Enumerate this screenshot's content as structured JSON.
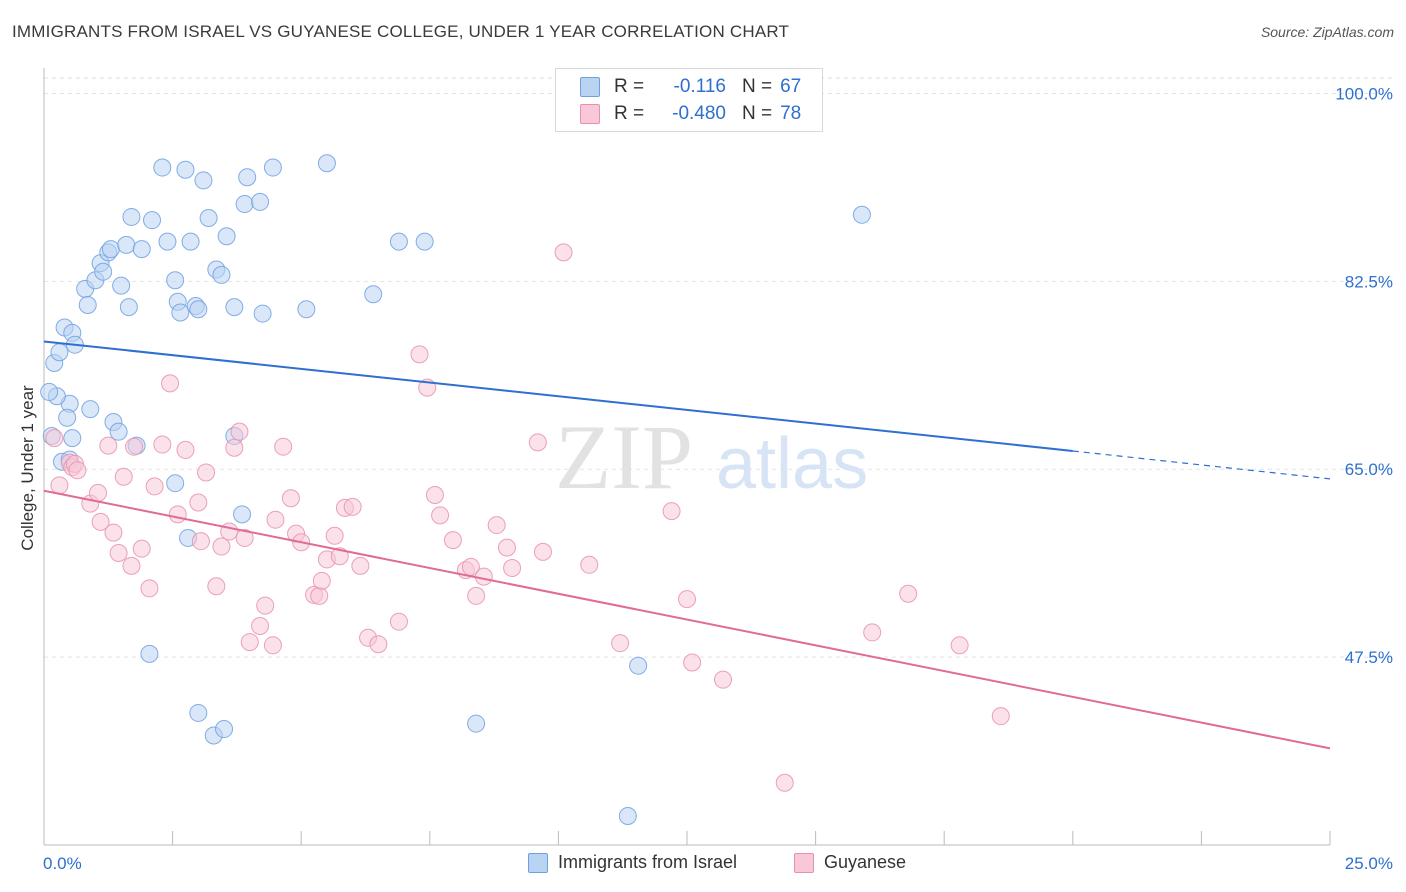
{
  "title": "IMMIGRANTS FROM ISRAEL VS GUYANESE COLLEGE, UNDER 1 YEAR CORRELATION CHART",
  "source": "Source: ZipAtlas.com",
  "watermark": {
    "zip": "ZIP",
    "atlas": "atlas"
  },
  "legend": {
    "rows": [
      {
        "key": "R =",
        "r": "-0.116",
        "nkey": "N =",
        "n": "67",
        "color": "#6fa0e0"
      },
      {
        "key": "R =",
        "r": "-0.480",
        "nkey": "N =",
        "n": "78",
        "color": "#e890ae"
      }
    ]
  },
  "bottom_legend": [
    "Immigrants from Israel",
    "Guyanese"
  ],
  "chart_data": {
    "type": "scatter",
    "title": "IMMIGRANTS FROM ISRAEL VS GUYANESE COLLEGE, UNDER 1 YEAR CORRELATION CHART",
    "xlabel": "",
    "ylabel": "College, Under 1 year",
    "xlim": [
      0,
      25
    ],
    "ylim": [
      30,
      102
    ],
    "x_tick_labels": [
      "0.0%",
      "25.0%"
    ],
    "y_ticks": [
      100,
      82.5,
      65,
      47.5
    ],
    "y_tick_labels": [
      "100.0%",
      "82.5%",
      "65.0%",
      "47.5%"
    ],
    "grid": true,
    "legend_position": "top-center",
    "series": [
      {
        "name": "Immigrants from Israel",
        "color": "#6fa0e0",
        "fill": "#b9d3f3",
        "r": -0.116,
        "n": 67,
        "trend": {
          "x0": 0,
          "y0": 76.9,
          "x1": 20.0,
          "y1": 66.7,
          "dash_to_x": 25,
          "dash_to_y": 64.1
        },
        "points": [
          [
            0.15,
            68.1
          ],
          [
            0.2,
            74.9
          ],
          [
            0.3,
            75.9
          ],
          [
            0.4,
            78.2
          ],
          [
            0.5,
            71.1
          ],
          [
            0.45,
            69.8
          ],
          [
            0.25,
            71.8
          ],
          [
            0.55,
            77.7
          ],
          [
            0.6,
            76.6
          ],
          [
            0.8,
            81.8
          ],
          [
            0.85,
            80.3
          ],
          [
            1.0,
            82.6
          ],
          [
            1.1,
            84.2
          ],
          [
            1.15,
            83.4
          ],
          [
            1.25,
            85.2
          ],
          [
            1.3,
            85.5
          ],
          [
            1.5,
            82.1
          ],
          [
            1.6,
            85.9
          ],
          [
            1.65,
            80.1
          ],
          [
            1.7,
            88.5
          ],
          [
            1.9,
            85.5
          ],
          [
            2.1,
            88.2
          ],
          [
            2.3,
            93.1
          ],
          [
            2.4,
            86.2
          ],
          [
            2.55,
            82.6
          ],
          [
            2.6,
            80.6
          ],
          [
            2.65,
            79.6
          ],
          [
            2.75,
            92.9
          ],
          [
            2.85,
            86.2
          ],
          [
            2.95,
            80.2
          ],
          [
            3.0,
            79.9
          ],
          [
            3.1,
            91.9
          ],
          [
            3.2,
            88.4
          ],
          [
            3.35,
            83.6
          ],
          [
            3.45,
            83.1
          ],
          [
            3.55,
            86.7
          ],
          [
            3.7,
            80.1
          ],
          [
            3.9,
            89.7
          ],
          [
            3.95,
            92.2
          ],
          [
            4.2,
            89.9
          ],
          [
            4.25,
            79.5
          ],
          [
            4.45,
            93.1
          ],
          [
            5.1,
            79.9
          ],
          [
            5.5,
            93.5
          ],
          [
            6.4,
            81.3
          ],
          [
            6.9,
            86.2
          ],
          [
            7.4,
            86.2
          ],
          [
            15.9,
            88.7
          ],
          [
            0.1,
            72.2
          ],
          [
            0.9,
            70.6
          ],
          [
            1.35,
            69.4
          ],
          [
            1.45,
            68.5
          ],
          [
            1.8,
            67.2
          ],
          [
            2.55,
            63.7
          ],
          [
            3.7,
            68.1
          ],
          [
            3.85,
            60.8
          ],
          [
            2.8,
            58.6
          ],
          [
            2.05,
            47.8
          ],
          [
            3.0,
            42.3
          ],
          [
            3.3,
            40.2
          ],
          [
            3.5,
            40.8
          ],
          [
            8.4,
            41.3
          ],
          [
            11.55,
            46.7
          ],
          [
            11.35,
            32.7
          ],
          [
            0.35,
            65.7
          ],
          [
            0.5,
            65.9
          ],
          [
            0.55,
            67.9
          ]
        ]
      },
      {
        "name": "Guyanese",
        "color": "#e890ae",
        "fill": "#f8c8d8",
        "r": -0.48,
        "n": 78,
        "trend": {
          "x0": 0,
          "y0": 63.0,
          "x1": 25,
          "y1": 39.0
        },
        "points": [
          [
            0.2,
            67.9
          ],
          [
            0.3,
            63.5
          ],
          [
            0.5,
            65.6
          ],
          [
            0.55,
            65.2
          ],
          [
            0.6,
            65.5
          ],
          [
            0.65,
            64.9
          ],
          [
            0.9,
            61.8
          ],
          [
            1.05,
            62.8
          ],
          [
            1.1,
            60.1
          ],
          [
            1.25,
            67.2
          ],
          [
            1.35,
            59.1
          ],
          [
            1.45,
            57.2
          ],
          [
            1.55,
            64.3
          ],
          [
            1.7,
            56.0
          ],
          [
            1.75,
            67.1
          ],
          [
            1.9,
            57.6
          ],
          [
            2.05,
            53.9
          ],
          [
            2.15,
            63.4
          ],
          [
            2.3,
            67.3
          ],
          [
            2.45,
            73.0
          ],
          [
            2.6,
            60.8
          ],
          [
            2.75,
            66.8
          ],
          [
            3.0,
            61.9
          ],
          [
            3.05,
            58.3
          ],
          [
            3.15,
            64.7
          ],
          [
            3.35,
            54.1
          ],
          [
            3.45,
            57.8
          ],
          [
            3.6,
            59.2
          ],
          [
            3.7,
            67.0
          ],
          [
            3.8,
            68.5
          ],
          [
            3.9,
            58.6
          ],
          [
            4.0,
            48.9
          ],
          [
            4.2,
            50.4
          ],
          [
            4.3,
            52.3
          ],
          [
            4.45,
            48.6
          ],
          [
            4.5,
            60.3
          ],
          [
            4.65,
            67.1
          ],
          [
            4.8,
            62.3
          ],
          [
            4.9,
            59.0
          ],
          [
            5.0,
            58.2
          ],
          [
            5.25,
            53.3
          ],
          [
            5.35,
            53.2
          ],
          [
            5.4,
            54.6
          ],
          [
            5.5,
            56.6
          ],
          [
            5.65,
            58.8
          ],
          [
            5.75,
            56.9
          ],
          [
            5.85,
            61.4
          ],
          [
            6.0,
            61.5
          ],
          [
            6.15,
            56.0
          ],
          [
            6.3,
            49.3
          ],
          [
            6.5,
            48.7
          ],
          [
            6.9,
            50.8
          ],
          [
            7.3,
            75.7
          ],
          [
            7.45,
            72.6
          ],
          [
            7.6,
            62.6
          ],
          [
            7.7,
            60.7
          ],
          [
            7.95,
            58.4
          ],
          [
            8.2,
            55.6
          ],
          [
            8.3,
            55.9
          ],
          [
            8.4,
            53.2
          ],
          [
            8.55,
            55.0
          ],
          [
            8.8,
            59.8
          ],
          [
            9.0,
            57.7
          ],
          [
            9.1,
            55.8
          ],
          [
            9.6,
            67.5
          ],
          [
            9.7,
            57.3
          ],
          [
            10.1,
            85.2
          ],
          [
            10.6,
            56.1
          ],
          [
            11.2,
            48.8
          ],
          [
            12.2,
            61.1
          ],
          [
            12.5,
            52.9
          ],
          [
            12.6,
            47.0
          ],
          [
            13.2,
            45.4
          ],
          [
            14.4,
            35.8
          ],
          [
            16.1,
            49.8
          ],
          [
            16.8,
            53.4
          ],
          [
            17.8,
            48.6
          ],
          [
            18.6,
            42.0
          ]
        ]
      }
    ]
  }
}
